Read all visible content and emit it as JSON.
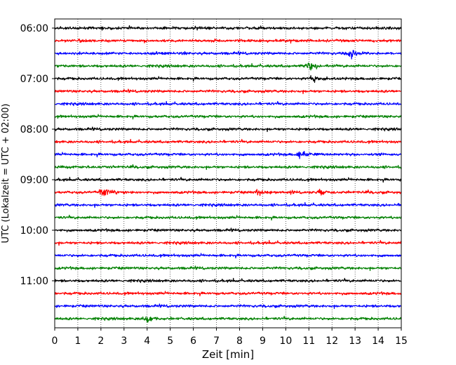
{
  "chart_data": {
    "type": "line",
    "chart_kind": "helicorder (seismogram drum plot)",
    "xlabel": "Zeit  [min]",
    "ylabel": "UTC (Lokalzeit = UTC + 02:00)",
    "xlim": [
      0,
      15
    ],
    "x_ticks": [
      0,
      1,
      2,
      3,
      4,
      5,
      6,
      7,
      8,
      9,
      10,
      11,
      12,
      13,
      14,
      15
    ],
    "x_tick_labels": [
      "0",
      "1",
      "2",
      "3",
      "4",
      "5",
      "6",
      "7",
      "8",
      "9",
      "10",
      "11",
      "12",
      "13",
      "14",
      "15"
    ],
    "y_tick_labels": [
      "06:00",
      "07:00",
      "08:00",
      "09:00",
      "10:00",
      "11:00"
    ],
    "first_trace_start": "06:00",
    "trace_interval_minutes": 15,
    "trace_count": 24,
    "color_cycle": [
      "#000000",
      "#ff0000",
      "#0000ff",
      "#008000"
    ],
    "grid": {
      "x": true,
      "style": "dotted"
    },
    "legend": "none",
    "events": [
      {
        "trace_start": "06:30",
        "minute": 12.8,
        "amplitude": 1.0
      },
      {
        "trace_start": "06:45",
        "minute": 11.0,
        "amplitude": 0.8
      },
      {
        "trace_start": "07:00",
        "minute": 11.2,
        "amplitude": 0.7
      },
      {
        "trace_start": "08:30",
        "minute": 10.6,
        "amplitude": 0.8
      },
      {
        "trace_start": "09:15",
        "minute": 2.1,
        "amplitude": 1.0
      },
      {
        "trace_start": "09:15",
        "minute": 8.8,
        "amplitude": 0.6
      },
      {
        "trace_start": "09:15",
        "minute": 11.5,
        "amplitude": 0.6
      },
      {
        "trace_start": "11:45",
        "minute": 4.0,
        "amplitude": 0.9
      }
    ]
  }
}
